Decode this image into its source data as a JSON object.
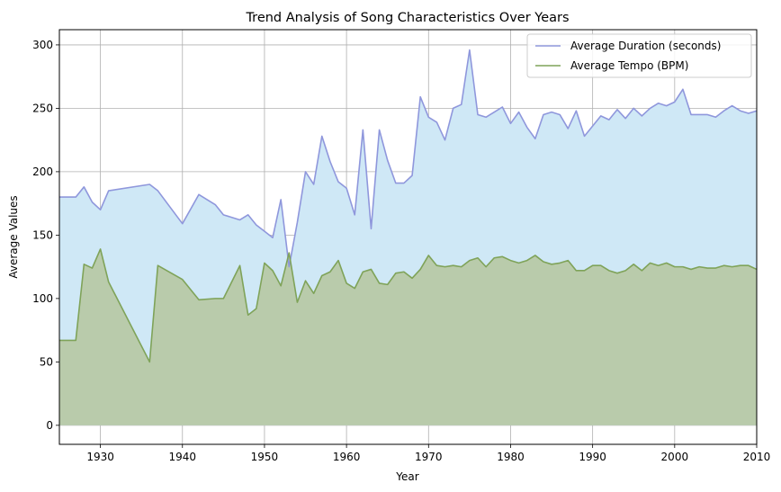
{
  "chart_data": {
    "type": "area",
    "title": "Trend Analysis of Song Characteristics Over Years",
    "xlabel": "Year",
    "ylabel": "Average Values",
    "xlim": [
      1925,
      2010
    ],
    "ylim": [
      -15,
      312
    ],
    "x_ticks": [
      1930,
      1940,
      1950,
      1960,
      1970,
      1980,
      1990,
      2000,
      2010
    ],
    "y_ticks": [
      0,
      50,
      100,
      150,
      200,
      250,
      300
    ],
    "grid": true,
    "legend_position": "top-right",
    "series": [
      {
        "name": "Average Duration (seconds)",
        "line_color": "#8f97dc",
        "fill_color": "#cfe8f6",
        "x": [
          1925,
          1926,
          1927,
          1928,
          1929,
          1930,
          1931,
          1936,
          1937,
          1940,
          1942,
          1944,
          1945,
          1947,
          1948,
          1949,
          1950,
          1951,
          1952,
          1953,
          1954,
          1955,
          1956,
          1957,
          1958,
          1959,
          1960,
          1961,
          1962,
          1963,
          1964,
          1965,
          1966,
          1967,
          1968,
          1969,
          1970,
          1971,
          1972,
          1973,
          1974,
          1975,
          1976,
          1977,
          1978,
          1979,
          1980,
          1981,
          1982,
          1983,
          1984,
          1985,
          1986,
          1987,
          1988,
          1989,
          1990,
          1991,
          1992,
          1993,
          1994,
          1995,
          1996,
          1997,
          1998,
          1999,
          2000,
          2001,
          2002,
          2003,
          2004,
          2005,
          2006,
          2007,
          2008,
          2009,
          2010
        ],
        "values": [
          180,
          180,
          180,
          188,
          176,
          170,
          185,
          190,
          185,
          159,
          182,
          174,
          166,
          162,
          166,
          158,
          153,
          148,
          178,
          125,
          160,
          200,
          190,
          228,
          208,
          192,
          187,
          166,
          233,
          155,
          233,
          209,
          191,
          191,
          197,
          259,
          243,
          239,
          225,
          250,
          253,
          296,
          245,
          243,
          247,
          251,
          238,
          247,
          235,
          226,
          245,
          247,
          245,
          234,
          248,
          228,
          236,
          244,
          241,
          249,
          242,
          250,
          244,
          250,
          254,
          252,
          255,
          265,
          245,
          245,
          245,
          243,
          248,
          252,
          248,
          246,
          248
        ]
      },
      {
        "name": "Average Tempo (BPM)",
        "line_color": "#7fa359",
        "fill_color": "#b7c9a6",
        "x": [
          1925,
          1926,
          1927,
          1928,
          1929,
          1930,
          1931,
          1936,
          1937,
          1940,
          1942,
          1944,
          1945,
          1947,
          1948,
          1949,
          1950,
          1951,
          1952,
          1953,
          1954,
          1955,
          1956,
          1957,
          1958,
          1959,
          1960,
          1961,
          1962,
          1963,
          1964,
          1965,
          1966,
          1967,
          1968,
          1969,
          1970,
          1971,
          1972,
          1973,
          1974,
          1975,
          1976,
          1977,
          1978,
          1979,
          1980,
          1981,
          1982,
          1983,
          1984,
          1985,
          1986,
          1987,
          1988,
          1989,
          1990,
          1991,
          1992,
          1993,
          1994,
          1995,
          1996,
          1997,
          1998,
          1999,
          2000,
          2001,
          2002,
          2003,
          2004,
          2005,
          2006,
          2007,
          2008,
          2009,
          2010
        ],
        "values": [
          67,
          67,
          67,
          127,
          124,
          139,
          113,
          50,
          126,
          115,
          99,
          100,
          100,
          126,
          87,
          92,
          128,
          122,
          110,
          136,
          97,
          114,
          104,
          118,
          121,
          130,
          112,
          108,
          121,
          123,
          112,
          111,
          120,
          121,
          116,
          123,
          134,
          126,
          125,
          126,
          125,
          130,
          132,
          125,
          132,
          133,
          130,
          128,
          130,
          134,
          129,
          127,
          128,
          130,
          122,
          122,
          126,
          126,
          122,
          120,
          122,
          127,
          122,
          128,
          126,
          128,
          125,
          125,
          123,
          125,
          124,
          124,
          126,
          125,
          126,
          126,
          123
        ]
      }
    ]
  }
}
